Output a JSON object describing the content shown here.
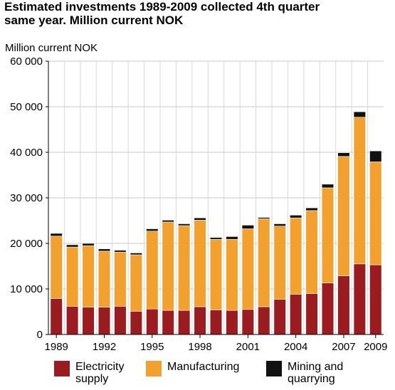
{
  "title": "Estimated investments 1989-2009 collected 4th quarter\nsame year.  Million current NOK",
  "chart_data": {
    "type": "bar",
    "stacked": true,
    "ylabel": "Million current NOK",
    "xlabel": "",
    "ylim": [
      0,
      60000
    ],
    "yticks": [
      0,
      10000,
      20000,
      30000,
      40000,
      50000,
      60000
    ],
    "ytick_labels": [
      "0",
      "10 000",
      "20 000",
      "30 000",
      "40 000",
      "50 000",
      "60 000"
    ],
    "grid": true,
    "legend_position": "bottom",
    "categories": [
      "1989",
      "1990",
      "1991",
      "1992",
      "1993",
      "1994",
      "1995",
      "1996",
      "1997",
      "1998",
      "1999",
      "2000",
      "2001",
      "2002",
      "2003",
      "2004",
      "2005",
      "2006",
      "2007",
      "2008",
      "2009"
    ],
    "xtick_labels": [
      "1989",
      "",
      "",
      "1992",
      "",
      "",
      "1995",
      "",
      "",
      "1998",
      "",
      "",
      "2001",
      "",
      "",
      "2004",
      "",
      "",
      "2007",
      "",
      "2009"
    ],
    "series": [
      {
        "name": "Electricity\nsupply",
        "color": "#9b1c20",
        "values": [
          7900,
          6200,
          6000,
          6000,
          6200,
          5100,
          5600,
          5300,
          5300,
          6100,
          5400,
          5300,
          5500,
          6100,
          7700,
          8800,
          9000,
          11300,
          12900,
          15500,
          15300
        ]
      },
      {
        "name": "Manufacturing",
        "color": "#f2a12f",
        "values": [
          13700,
          13000,
          13500,
          12300,
          11900,
          12400,
          17100,
          19400,
          18600,
          19000,
          15500,
          15600,
          17700,
          19300,
          16100,
          16800,
          18200,
          20900,
          26200,
          32200,
          22600
        ]
      },
      {
        "name": "Mining and\nquarrying",
        "color": "#111111",
        "values": [
          600,
          500,
          500,
          500,
          400,
          400,
          500,
          400,
          400,
          500,
          400,
          600,
          800,
          300,
          500,
          600,
          600,
          800,
          800,
          1200,
          2400
        ]
      }
    ]
  }
}
